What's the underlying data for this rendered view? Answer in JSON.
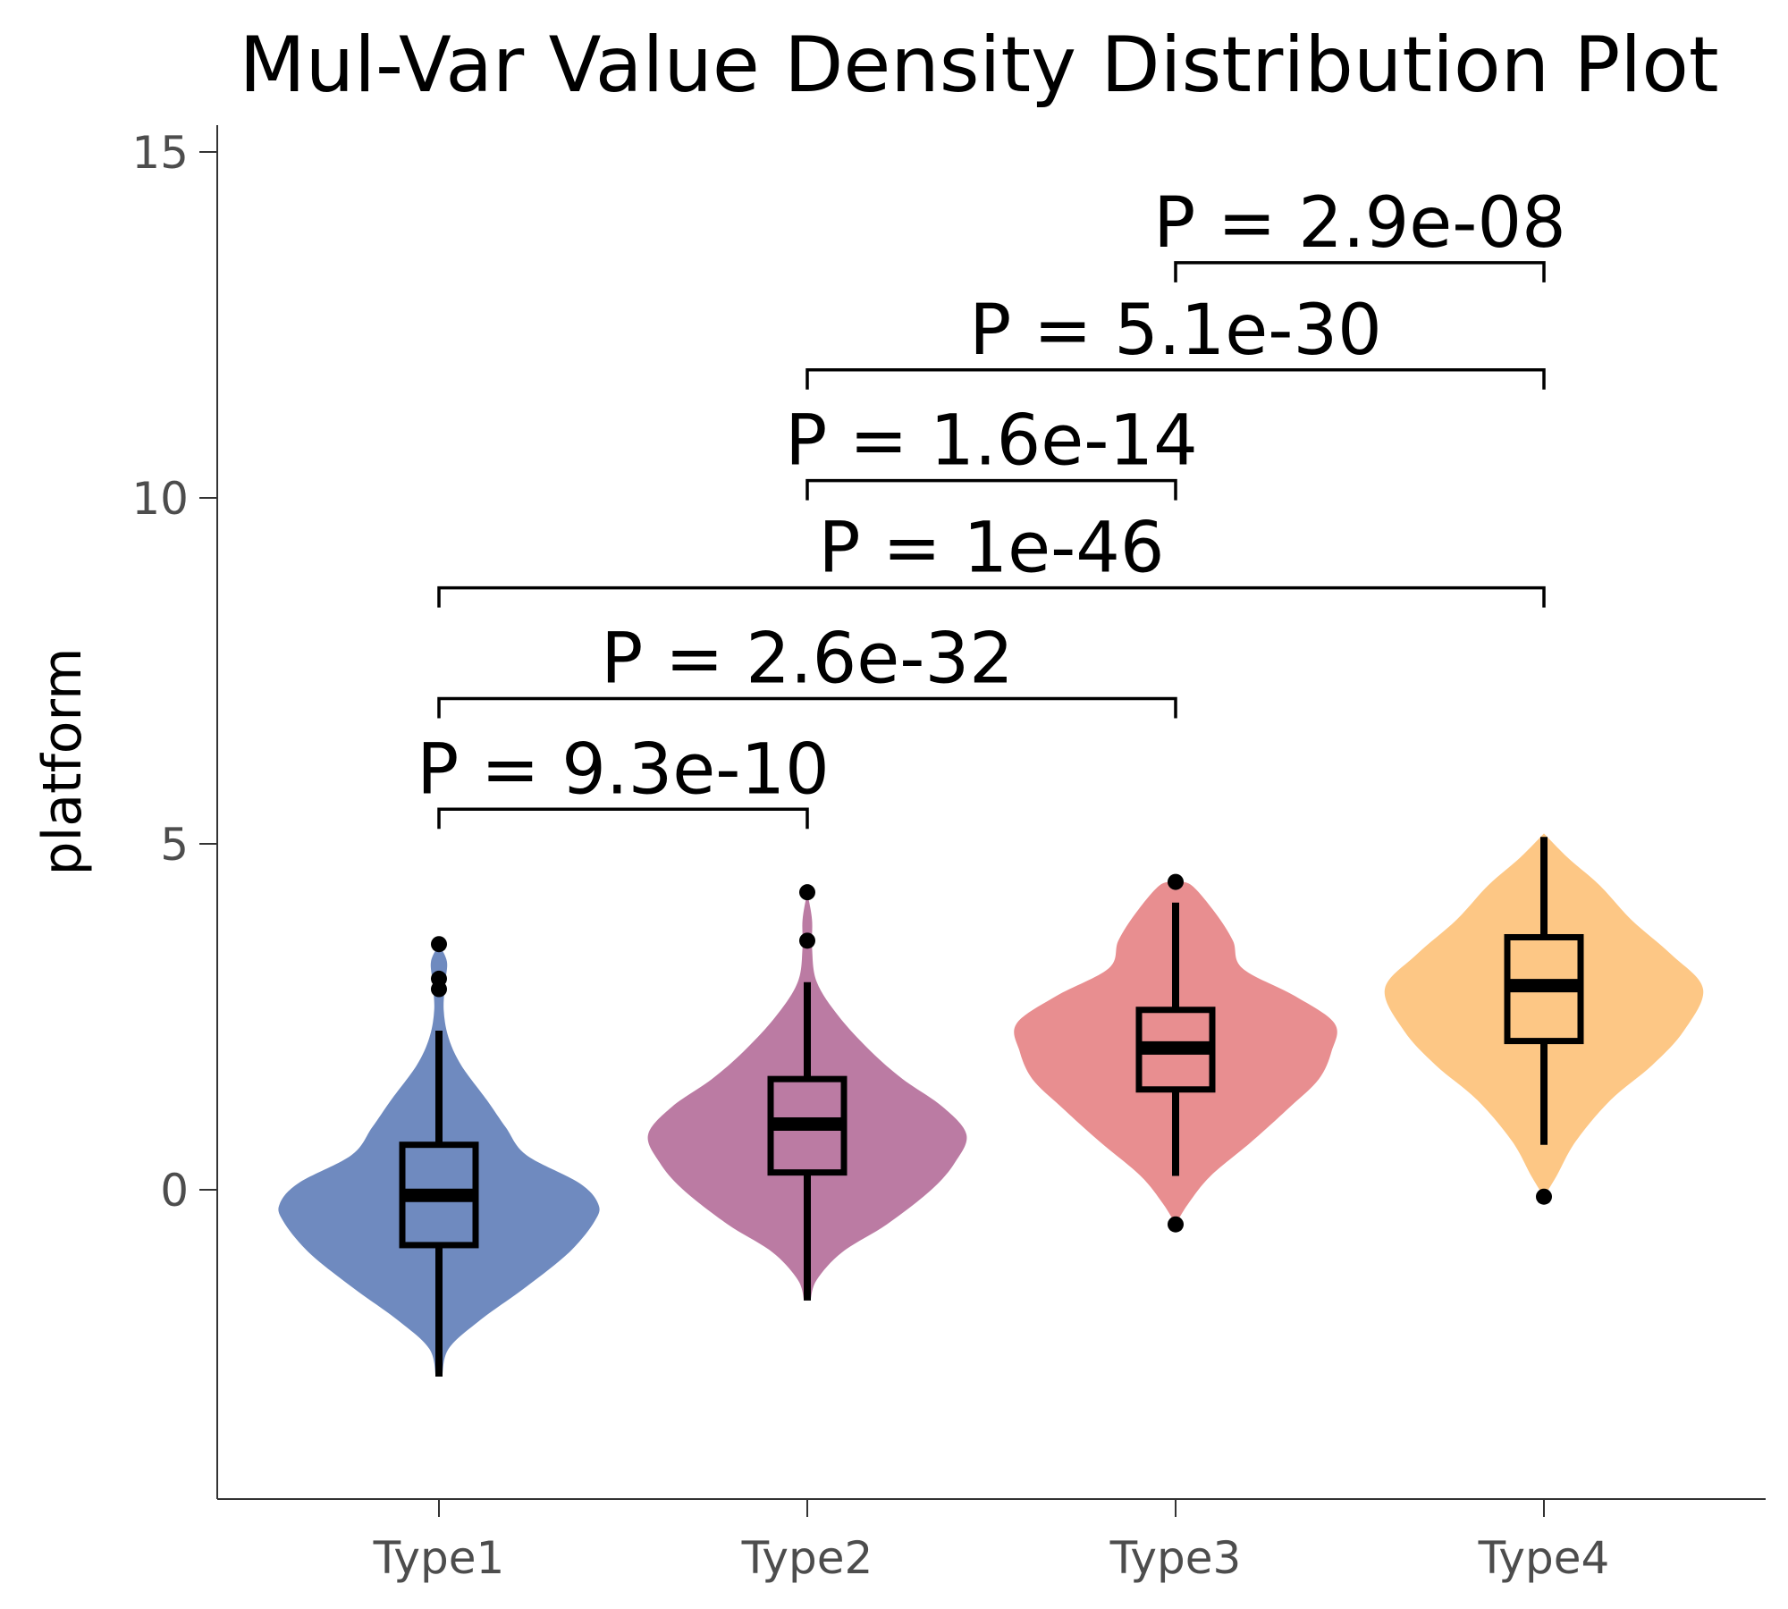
{
  "chart_data": {
    "type": "violin",
    "title": "Mul-Var Value Density Distribution Plot",
    "xlabel": "",
    "ylabel": "platform",
    "ylim": [
      -4.5,
      15
    ],
    "yticks": [
      0,
      5,
      10,
      15
    ],
    "categories": [
      "Type1",
      "Type2",
      "Type3",
      "Type4"
    ],
    "colors": [
      "#6f8abf",
      "#bb7ba3",
      "#e88e90",
      "#fdc785"
    ],
    "grid": false,
    "legend": "none",
    "series": [
      {
        "category": "Type1",
        "box": {
          "whisker_low": -2.7,
          "q1": -0.8,
          "median": -0.08,
          "q3": 0.65,
          "whisker_high": 2.3
        },
        "outliers": [
          3.55,
          3.05,
          2.9
        ],
        "violin_extent": [
          -2.7,
          3.55
        ],
        "density": [
          [
            -2.7,
            0.02
          ],
          [
            -2.3,
            0.06
          ],
          [
            -1.9,
            0.25
          ],
          [
            -1.4,
            0.55
          ],
          [
            -0.9,
            0.82
          ],
          [
            -0.45,
            0.98
          ],
          [
            -0.2,
            1.0
          ],
          [
            0.1,
            0.88
          ],
          [
            0.5,
            0.55
          ],
          [
            0.9,
            0.42
          ],
          [
            1.3,
            0.3
          ],
          [
            1.8,
            0.14
          ],
          [
            2.2,
            0.06
          ],
          [
            2.6,
            0.03
          ],
          [
            3.0,
            0.04
          ],
          [
            3.3,
            0.05
          ],
          [
            3.55,
            0.0
          ]
        ]
      },
      {
        "category": "Type2",
        "box": {
          "whisker_low": -1.6,
          "q1": 0.25,
          "median": 0.95,
          "q3": 1.6,
          "whisker_high": 3.0
        },
        "outliers": [
          4.3,
          3.6
        ],
        "violin_extent": [
          -1.6,
          4.3
        ],
        "density": [
          [
            -1.6,
            0.02
          ],
          [
            -1.3,
            0.06
          ],
          [
            -0.9,
            0.22
          ],
          [
            -0.5,
            0.5
          ],
          [
            0.0,
            0.78
          ],
          [
            0.4,
            0.93
          ],
          [
            0.8,
            1.0
          ],
          [
            1.2,
            0.85
          ],
          [
            1.6,
            0.6
          ],
          [
            2.0,
            0.4
          ],
          [
            2.5,
            0.2
          ],
          [
            3.0,
            0.06
          ],
          [
            3.5,
            0.03
          ],
          [
            3.9,
            0.03
          ],
          [
            4.3,
            0.0
          ]
        ]
      },
      {
        "category": "Type3",
        "box": {
          "whisker_low": 0.2,
          "q1": 1.45,
          "median": 2.05,
          "q3": 2.6,
          "whisker_high": 4.15
        },
        "outliers": [
          4.45,
          -0.5
        ],
        "violin_extent": [
          -0.5,
          4.45
        ],
        "density": [
          [
            -0.5,
            0.0
          ],
          [
            -0.2,
            0.08
          ],
          [
            0.2,
            0.22
          ],
          [
            0.7,
            0.48
          ],
          [
            1.2,
            0.72
          ],
          [
            1.6,
            0.9
          ],
          [
            2.0,
            0.98
          ],
          [
            2.4,
            1.0
          ],
          [
            2.8,
            0.75
          ],
          [
            3.2,
            0.42
          ],
          [
            3.6,
            0.36
          ],
          [
            4.0,
            0.25
          ],
          [
            4.4,
            0.1
          ],
          [
            4.45,
            0.0
          ]
        ]
      },
      {
        "category": "Type4",
        "box": {
          "whisker_low": 0.65,
          "q1": 2.15,
          "median": 2.95,
          "q3": 3.65,
          "whisker_high": 5.1
        },
        "outliers": [
          -0.1
        ],
        "violin_extent": [
          -0.1,
          5.15
        ],
        "density": [
          [
            -0.1,
            0.0
          ],
          [
            0.2,
            0.08
          ],
          [
            0.7,
            0.2
          ],
          [
            1.3,
            0.42
          ],
          [
            1.8,
            0.68
          ],
          [
            2.3,
            0.88
          ],
          [
            2.9,
            1.0
          ],
          [
            3.4,
            0.8
          ],
          [
            3.9,
            0.55
          ],
          [
            4.4,
            0.35
          ],
          [
            4.8,
            0.15
          ],
          [
            5.15,
            0.0
          ]
        ]
      }
    ],
    "comparisons": [
      {
        "from": "Type1",
        "to": "Type2",
        "label": "P = 9.3e-10",
        "y": 5.5
      },
      {
        "from": "Type1",
        "to": "Type3",
        "label": "P = 2.6e-32",
        "y": 7.1
      },
      {
        "from": "Type1",
        "to": "Type4",
        "label": "P = 1e-46",
        "y": 8.7
      },
      {
        "from": "Type2",
        "to": "Type3",
        "label": "P = 1.6e-14",
        "y": 10.25
      },
      {
        "from": "Type2",
        "to": "Type4",
        "label": "P = 5.1e-30",
        "y": 11.85
      },
      {
        "from": "Type3",
        "to": "Type4",
        "label": "P = 2.9e-08",
        "y": 13.4
      }
    ]
  }
}
